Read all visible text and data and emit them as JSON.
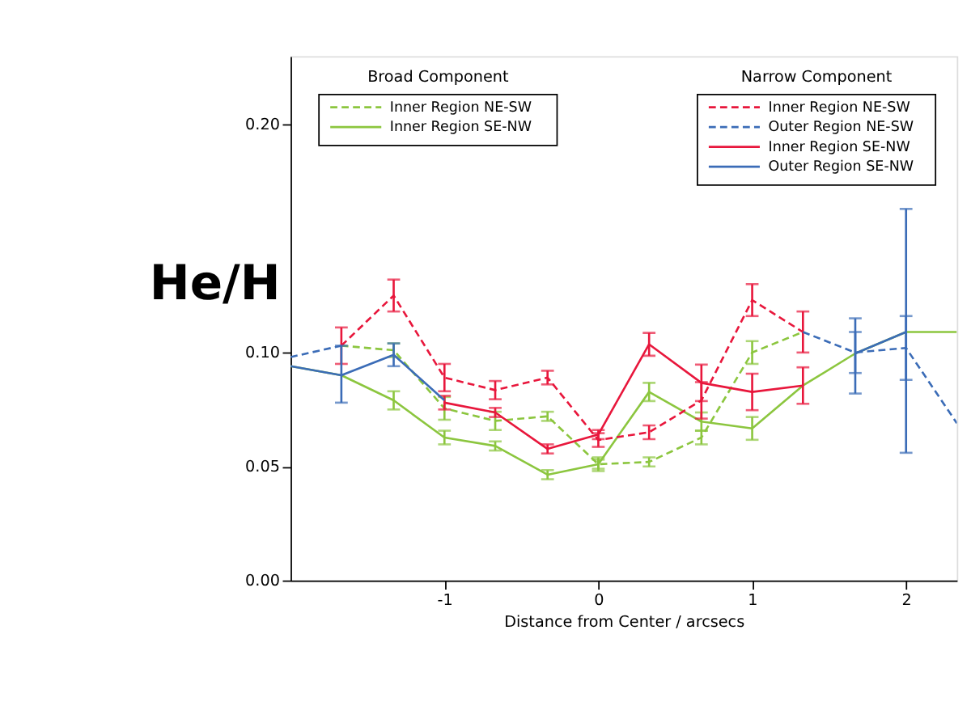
{
  "chart_data": {
    "type": "line",
    "xlabel": "Distance from Center / arcsecs",
    "ylabel": "He/H",
    "xlim": [
      -2,
      2.33
    ],
    "xticks": [
      -1,
      0,
      1,
      2
    ],
    "ylim": [
      0,
      0.23
    ],
    "yticks": [
      {
        "value": 0,
        "label": "0.00"
      },
      {
        "value": 0.05,
        "label": "0.05"
      },
      {
        "value": 0.1,
        "label": "0.10"
      },
      {
        "value": 0.2,
        "label": "0.20"
      }
    ],
    "legend_title": [
      "Broad Component",
      "Narrow Component"
    ],
    "grid": false,
    "marker": "none",
    "legend": "top",
    "series": [
      {
        "name": "Inner Region NE-SW",
        "color": "#8cc63f",
        "line_style": "dashed",
        "x": [
          -1.67,
          -1.33,
          -1,
          -0.67,
          -0.33,
          0,
          0.33,
          0.67,
          1,
          1.33
        ],
        "values": [
          0.103,
          0.101,
          0.0755,
          0.07,
          0.072,
          0.051,
          0.052,
          0.0627,
          0.1,
          0.109
        ],
        "errors": [
          null,
          0.003,
          0.005,
          0.004,
          0.002,
          0.002,
          0.002,
          0.003,
          0.005,
          null
        ]
      },
      {
        "name": "Inner Region SE-NW",
        "color": "#8cc63f",
        "line_style": "solid",
        "x": [
          -2,
          -1.67,
          -1.33,
          -1,
          -0.67,
          -0.33,
          0,
          0.33,
          0.67,
          1,
          1.33,
          1.67,
          2,
          2.33
        ],
        "values": [
          0.094,
          0.09,
          0.079,
          0.0627,
          0.059,
          0.0464,
          0.051,
          0.0827,
          0.0697,
          0.0667,
          0.0855,
          0.0996,
          0.109,
          0.109
        ],
        "errors": [
          null,
          null,
          0.004,
          0.003,
          0.002,
          0.002,
          0.003,
          0.004,
          0.004,
          0.005,
          null,
          null,
          null,
          null
        ]
      },
      {
        "name": "Inner Region NE-SW",
        "color": "#e8173c",
        "line_style": "dashed",
        "x": [
          -1.67,
          -1.33,
          -1,
          -0.67,
          -0.33,
          0,
          0.33,
          0.67,
          1,
          1.33
        ],
        "values": [
          0.103,
          0.125,
          0.089,
          0.0835,
          0.089,
          0.0616,
          0.065,
          0.079,
          0.123,
          0.109
        ],
        "errors": [
          0.008,
          0.007,
          0.006,
          0.004,
          0.003,
          0.003,
          0.003,
          0.008,
          0.007,
          0.009
        ]
      },
      {
        "name": "Outer Region NE-SW",
        "color": "#3b6cb7",
        "line_style": "dashed",
        "x": [
          -2,
          -1.67,
          0,
          1.33,
          1.67,
          2,
          2.33
        ],
        "values": [
          0.098,
          0.103,
          null,
          0.109,
          0.1,
          0.102,
          0.069
        ],
        "errors": [
          null,
          null,
          null,
          null,
          0.009,
          0.014,
          null
        ]
      },
      {
        "name": "Inner Region SE-NW",
        "color": "#e8173c",
        "line_style": "solid",
        "x": [
          -1,
          -0.67,
          -0.33,
          0,
          0.33,
          0.67,
          1,
          1.33
        ],
        "values": [
          0.078,
          0.0737,
          0.0577,
          0.064,
          0.1036,
          0.0867,
          0.0827,
          0.0855
        ],
        "errors": [
          0.003,
          0.002,
          0.002,
          0.002,
          0.005,
          0.008,
          0.008,
          0.008
        ]
      },
      {
        "name": "Outer Region SE-NW",
        "color": "#3b6cb7",
        "line_style": "solid",
        "x": [
          -2,
          -1.67,
          -1.33,
          -1,
          0,
          1.67,
          2
        ],
        "values": [
          0.094,
          0.09,
          0.099,
          0.079,
          null,
          0.0996,
          0.109
        ],
        "errors": [
          null,
          [
            0.078,
            0.103
          ],
          0.005,
          null,
          null,
          [
            0.082,
            0.115
          ],
          [
            0.056,
            0.163
          ]
        ]
      }
    ]
  }
}
